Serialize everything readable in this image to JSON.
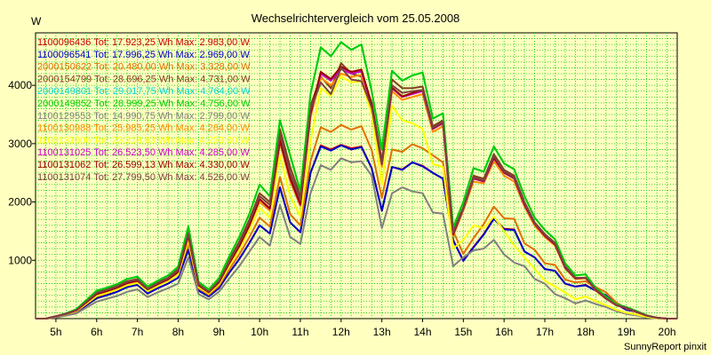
{
  "chart_data": {
    "type": "line",
    "title": "Wechselrichtervergleich vom 25.05.2008",
    "ylabel": "W",
    "xlabel": "",
    "ylim": [
      0,
      4900
    ],
    "xlim": [
      4.5,
      20.25
    ],
    "grid": true,
    "legend_position": "top-left",
    "footer": "SunnyReport pinxit",
    "y_ticks": [
      {
        "value": 1000,
        "label": "1000"
      },
      {
        "value": 2000,
        "label": "2000"
      },
      {
        "value": 3000,
        "label": "3000"
      },
      {
        "value": 4000,
        "label": "4000"
      }
    ],
    "x_ticks": [
      {
        "value": 5,
        "label": "5h"
      },
      {
        "value": 6,
        "label": "6h"
      },
      {
        "value": 7,
        "label": "7h"
      },
      {
        "value": 8,
        "label": "8h"
      },
      {
        "value": 9,
        "label": "9h"
      },
      {
        "value": 10,
        "label": "10h"
      },
      {
        "value": 11,
        "label": "11h"
      },
      {
        "value": 12,
        "label": "12h"
      },
      {
        "value": 13,
        "label": "13h"
      },
      {
        "value": 14,
        "label": "14h"
      },
      {
        "value": 15,
        "label": "15h"
      },
      {
        "value": 16,
        "label": "16h"
      },
      {
        "value": 17,
        "label": "17h"
      },
      {
        "value": 18,
        "label": "18h"
      },
      {
        "value": 19,
        "label": "19h"
      },
      {
        "value": 20,
        "label": "20h"
      }
    ],
    "x": [
      4.5,
      4.75,
      5.0,
      5.25,
      5.5,
      5.75,
      6.0,
      6.25,
      6.5,
      6.75,
      7.0,
      7.25,
      7.5,
      7.75,
      8.0,
      8.25,
      8.5,
      8.75,
      9.0,
      9.25,
      9.5,
      9.75,
      10.0,
      10.25,
      10.5,
      10.75,
      11.0,
      11.25,
      11.5,
      11.75,
      12.0,
      12.25,
      12.5,
      12.75,
      13.0,
      13.25,
      13.5,
      13.75,
      14.0,
      14.25,
      14.5,
      14.75,
      15.0,
      15.25,
      15.5,
      15.75,
      16.0,
      16.25,
      16.5,
      16.75,
      17.0,
      17.25,
      17.5,
      17.75,
      18.0,
      18.25,
      18.5,
      18.75,
      19.0,
      19.25,
      19.5,
      19.75,
      20.0,
      20.25
    ],
    "series": [
      {
        "name": "1100096436 Tot: 17.923,25 Wh Max: 2.983,00 W",
        "color": "#cc0000",
        "values": [
          0,
          0,
          30,
          60,
          110,
          230,
          350,
          400,
          460,
          540,
          580,
          430,
          520,
          600,
          700,
          1180,
          480,
          380,
          520,
          780,
          1020,
          1300,
          1600,
          1460,
          2250,
          1650,
          1480,
          2500,
          2970,
          2900,
          2980,
          2920,
          2950,
          2580,
          1850,
          2600,
          2560,
          2680,
          2620,
          2500,
          2400,
          1350,
          1000,
          1230,
          1450,
          1720,
          1540,
          1530,
          1150,
          1050,
          850,
          820,
          600,
          550,
          580,
          480,
          400,
          250,
          150,
          120,
          50,
          10,
          0,
          0
        ]
      },
      {
        "name": "1100096541 Tot: 17.996,25 Wh Max: 2.969,00 W",
        "color": "#0000cc",
        "values": [
          0,
          0,
          30,
          60,
          110,
          230,
          350,
          400,
          460,
          540,
          580,
          430,
          520,
          600,
          700,
          1180,
          480,
          380,
          520,
          780,
          1020,
          1300,
          1600,
          1460,
          2250,
          1650,
          1480,
          2500,
          2950,
          2880,
          2970,
          2900,
          2940,
          2580,
          1850,
          2600,
          2550,
          2680,
          2610,
          2500,
          2400,
          1340,
          990,
          1220,
          1440,
          1710,
          1530,
          1520,
          1150,
          1050,
          850,
          820,
          600,
          550,
          570,
          480,
          400,
          250,
          150,
          120,
          50,
          10,
          0,
          0
        ]
      },
      {
        "name": "2000150622 Tot: 20.480,00 Wh Max: 3.328,00 W",
        "color": "#e07000",
        "values": [
          0,
          0,
          30,
          70,
          120,
          250,
          380,
          430,
          500,
          580,
          620,
          470,
          560,
          650,
          760,
          1280,
          520,
          410,
          560,
          840,
          1100,
          1400,
          1730,
          1580,
          2430,
          1790,
          1600,
          2700,
          3280,
          3200,
          3320,
          3240,
          3300,
          2890,
          2070,
          2900,
          2860,
          2990,
          2920,
          2800,
          2680,
          1500,
          1110,
          1380,
          1620,
          1920,
          1720,
          1710,
          1290,
          1180,
          950,
          920,
          670,
          620,
          640,
          540,
          450,
          280,
          170,
          130,
          60,
          12,
          0,
          0
        ]
      },
      {
        "name": "2000154799 Tot: 28.696,25 Wh Max: 4.731,00 W",
        "color": "#804020",
        "values": [
          0,
          0,
          40,
          90,
          150,
          300,
          450,
          500,
          560,
          640,
          680,
          520,
          620,
          700,
          850,
          1500,
          600,
          470,
          650,
          1000,
          1320,
          1700,
          2150,
          2000,
          3250,
          2600,
          2100,
          3650,
          4150,
          3950,
          4380,
          4200,
          4150,
          3700,
          2700,
          4100,
          3950,
          3950,
          3980,
          3300,
          3400,
          1500,
          1900,
          2450,
          2400,
          2820,
          2550,
          2450,
          2000,
          1650,
          1450,
          1300,
          900,
          700,
          700,
          500,
          350,
          240,
          190,
          120,
          50,
          15,
          0,
          0
        ]
      },
      {
        "name": "2000149801 Tot: 29.017,75 Wh Max: 4.764,00 W",
        "color": "#00d8d8",
        "values": [
          0,
          0,
          40,
          90,
          160,
          320,
          480,
          530,
          590,
          680,
          720,
          550,
          650,
          740,
          890,
          1580,
          630,
          500,
          690,
          1060,
          1400,
          1800,
          2300,
          2100,
          3400,
          2800,
          2180,
          3850,
          4650,
          4500,
          4740,
          4610,
          4700,
          3900,
          2900,
          4250,
          4080,
          4170,
          4220,
          3430,
          3520,
          1560,
          2000,
          2580,
          2520,
          2950,
          2660,
          2560,
          2100,
          1730,
          1520,
          1360,
          950,
          740,
          760,
          530,
          380,
          250,
          200,
          130,
          55,
          15,
          0,
          0
        ]
      },
      {
        "name": "2000149852 Tot: 28.999,25 Wh Max: 4.756,00 W",
        "color": "#00cc00",
        "values": [
          0,
          0,
          40,
          90,
          160,
          320,
          480,
          530,
          590,
          680,
          720,
          550,
          650,
          740,
          890,
          1580,
          630,
          500,
          690,
          1060,
          1400,
          1800,
          2300,
          2100,
          3400,
          2800,
          2180,
          3850,
          4650,
          4500,
          4740,
          4610,
          4700,
          3900,
          2900,
          4250,
          4080,
          4170,
          4220,
          3430,
          3520,
          1560,
          2000,
          2580,
          2520,
          2950,
          2660,
          2560,
          2100,
          1730,
          1520,
          1360,
          950,
          740,
          760,
          530,
          380,
          250,
          200,
          130,
          55,
          15,
          0,
          0
        ]
      },
      {
        "name": "1100129553 Tot: 14.990,75 Wh Max: 2.799,00 W",
        "color": "#808080",
        "values": [
          0,
          0,
          20,
          50,
          90,
          190,
          290,
          340,
          390,
          460,
          500,
          370,
          450,
          520,
          600,
          1050,
          420,
          330,
          460,
          680,
          900,
          1150,
          1400,
          1250,
          1950,
          1400,
          1280,
          2150,
          2630,
          2550,
          2750,
          2680,
          2700,
          2450,
          1550,
          2150,
          2250,
          2180,
          2150,
          1820,
          1800,
          900,
          1050,
          1170,
          1200,
          1350,
          1100,
          960,
          900,
          680,
          600,
          420,
          350,
          260,
          310,
          250,
          200,
          130,
          80,
          55,
          20,
          5,
          0,
          0
        ]
      },
      {
        "name": "1100130988 Tot: 25.985,25 Wh Max: 4.264,00 W",
        "color": "#ff8c00",
        "values": [
          0,
          0,
          40,
          80,
          140,
          280,
          420,
          470,
          530,
          610,
          650,
          500,
          590,
          670,
          800,
          1420,
          570,
          450,
          620,
          940,
          1240,
          1600,
          2000,
          1850,
          3000,
          2350,
          1930,
          3450,
          4130,
          4000,
          4200,
          4140,
          4180,
          3600,
          2600,
          3900,
          3750,
          3800,
          3850,
          3200,
          3300,
          1420,
          1850,
          2350,
          2320,
          2700,
          2450,
          2350,
          1920,
          1590,
          1400,
          1250,
          860,
          680,
          690,
          480,
          340,
          230,
          180,
          110,
          50,
          15,
          0,
          0
        ]
      },
      {
        "name": "1100131006 Tot: 23.218,63 Wh Max: 4.230,00 W",
        "color": "#ffff00",
        "values": [
          0,
          0,
          35,
          75,
          130,
          260,
          390,
          440,
          500,
          570,
          610,
          470,
          560,
          640,
          750,
          1350,
          540,
          430,
          590,
          890,
          1180,
          1520,
          1900,
          1730,
          2800,
          2100,
          1750,
          3050,
          3950,
          3820,
          4150,
          4050,
          4070,
          3500,
          2300,
          3650,
          3400,
          3350,
          3250,
          2650,
          2600,
          1200,
          1350,
          1600,
          1550,
          1750,
          1500,
          1250,
          1050,
          850,
          650,
          550,
          450,
          330,
          380,
          300,
          230,
          150,
          100,
          70,
          30,
          8,
          0,
          0
        ]
      },
      {
        "name": "1100131025 Tot: 26.523,50 Wh Max: 4.285,00 W",
        "color": "#cc00cc",
        "values": [
          0,
          0,
          40,
          80,
          140,
          280,
          420,
          470,
          530,
          610,
          650,
          500,
          590,
          670,
          800,
          1420,
          570,
          450,
          620,
          940,
          1240,
          1600,
          2050,
          1880,
          3050,
          2400,
          1950,
          3500,
          4200,
          4080,
          4280,
          4200,
          4240,
          3650,
          2650,
          3950,
          3800,
          3850,
          3900,
          3250,
          3350,
          1440,
          1880,
          2400,
          2350,
          2750,
          2500,
          2400,
          1950,
          1620,
          1420,
          1270,
          870,
          690,
          700,
          490,
          345,
          232,
          182,
          112,
          50,
          15,
          0,
          0
        ]
      },
      {
        "name": "1100131062 Tot: 26.599,13 Wh Max: 4.330,00 W",
        "color": "#990000",
        "values": [
          0,
          0,
          40,
          80,
          140,
          280,
          420,
          470,
          530,
          610,
          650,
          500,
          590,
          670,
          800,
          1420,
          570,
          450,
          620,
          940,
          1240,
          1600,
          2050,
          1890,
          3060,
          2410,
          1960,
          3520,
          4230,
          4110,
          4320,
          4230,
          4270,
          3680,
          2660,
          3960,
          3810,
          3870,
          3920,
          3260,
          3360,
          1445,
          1890,
          2410,
          2360,
          2760,
          2510,
          2410,
          1960,
          1625,
          1425,
          1275,
          875,
          690,
          705,
          490,
          345,
          232,
          182,
          112,
          50,
          15,
          0,
          0
        ]
      },
      {
        "name": "1100131074 Tot: 27.799,50 Wh Max: 4.526,00 W",
        "color": "#804040",
        "values": [
          0,
          0,
          40,
          85,
          145,
          290,
          440,
          490,
          550,
          630,
          670,
          510,
          605,
          690,
          830,
          1460,
          590,
          460,
          640,
          970,
          1290,
          1660,
          2100,
          1950,
          3150,
          2500,
          2030,
          3580,
          4050,
          3850,
          4300,
          4100,
          4070,
          3620,
          2650,
          4000,
          3870,
          3900,
          3920,
          3270,
          3370,
          1470,
          1880,
          2420,
          2370,
          2790,
          2520,
          2420,
          1980,
          1630,
          1440,
          1290,
          890,
          700,
          700,
          500,
          350,
          235,
          185,
          115,
          50,
          15,
          0,
          0
        ]
      }
    ]
  }
}
